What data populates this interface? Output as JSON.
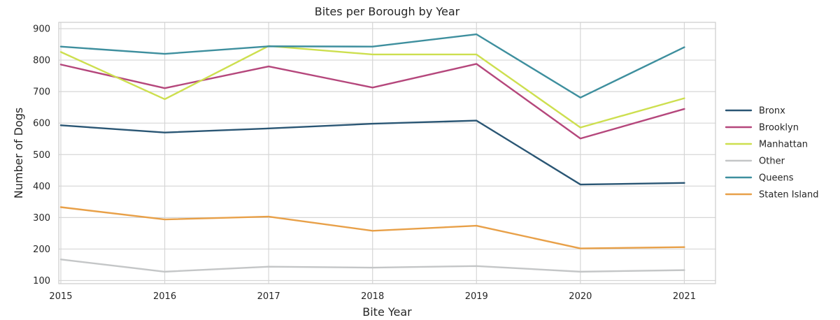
{
  "chart_data": {
    "type": "line",
    "title": "Bites per Borough by Year",
    "xlabel": "Bite Year",
    "ylabel": "Number of Dogs",
    "x": [
      2015,
      2016,
      2017,
      2018,
      2019,
      2020,
      2021
    ],
    "x_ticks": [
      "2015",
      "2016",
      "2017",
      "2018",
      "2019",
      "2020",
      "2021"
    ],
    "xlim": [
      2014.98,
      2021.3
    ],
    "ylim": [
      90,
      920
    ],
    "y_ticks": [
      100,
      200,
      300,
      400,
      500,
      600,
      700,
      800,
      900
    ],
    "y_tick_labels": [
      "100",
      "200",
      "300",
      "400",
      "500",
      "600",
      "700",
      "800",
      "900"
    ],
    "grid": true,
    "legend_placement": "right",
    "series": [
      {
        "name": "Bronx",
        "color": "#2a5674",
        "values": [
          593,
          570,
          583,
          598,
          608,
          405,
          410
        ]
      },
      {
        "name": "Brooklyn",
        "color": "#b5477c",
        "values": [
          786,
          711,
          780,
          713,
          788,
          551,
          645
        ]
      },
      {
        "name": "Manhattan",
        "color": "#cddf4f",
        "values": [
          826,
          676,
          845,
          818,
          818,
          586,
          679
        ]
      },
      {
        "name": "Other",
        "color": "#c4c6c7",
        "values": [
          167,
          128,
          144,
          141,
          146,
          128,
          133
        ]
      },
      {
        "name": "Queens",
        "color": "#3e8f9e",
        "values": [
          843,
          820,
          844,
          843,
          882,
          681,
          841
        ]
      },
      {
        "name": "Staten Island",
        "color": "#e8a048",
        "values": [
          333,
          294,
          303,
          258,
          274,
          202,
          206
        ]
      }
    ]
  }
}
